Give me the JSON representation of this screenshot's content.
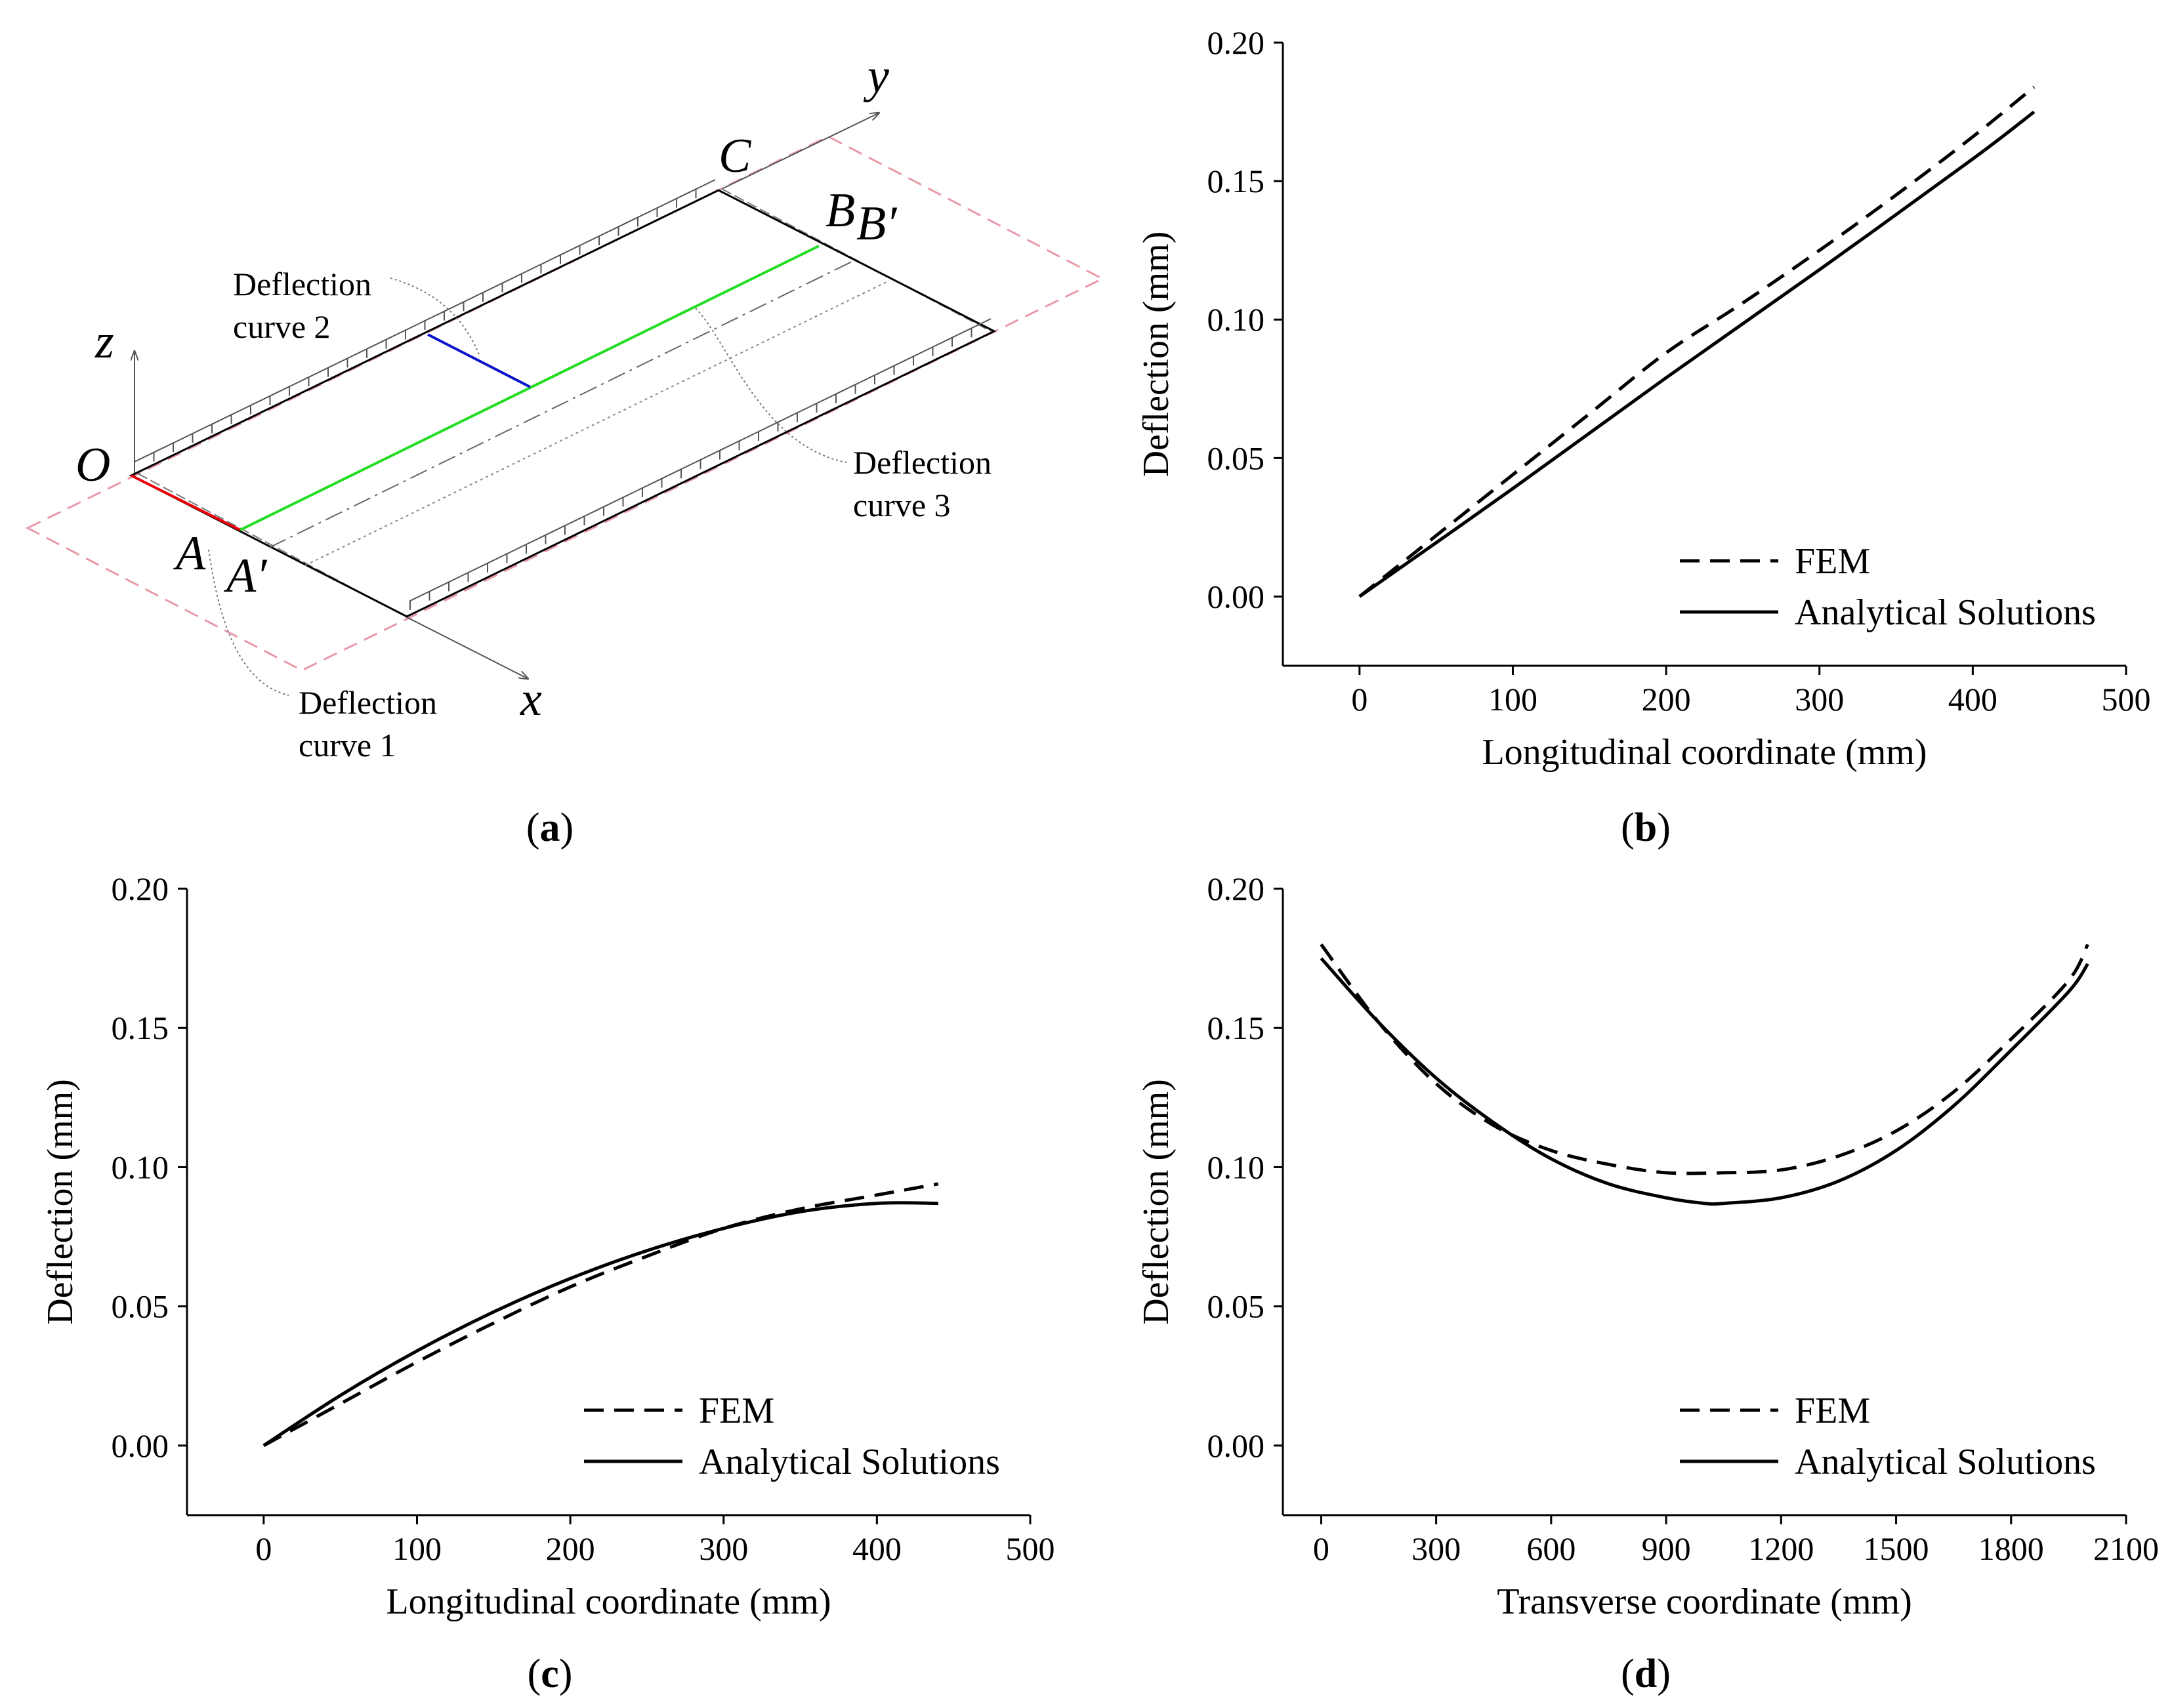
{
  "diagram": {
    "axes": {
      "z": "z",
      "y": "y",
      "x": "x"
    },
    "points": {
      "O": "O",
      "A": "A",
      "A_prime": "A′",
      "B": "B",
      "B_prime": "B′",
      "C": "C"
    },
    "labels": {
      "curve1_line1": "Deflection",
      "curve1_line2": "curve 1",
      "curve2_line1": "Deflection",
      "curve2_line2": "curve 2",
      "curve3_line1": "Deflection",
      "curve3_line2": "curve 3"
    },
    "colors": {
      "curve1": "#e8000b",
      "curve2": "#0a14c8",
      "curve3": "#22dd22",
      "plane": "#e89aa8"
    }
  },
  "captions": {
    "a": {
      "open": "(",
      "letter": "a",
      "close": ")"
    },
    "b": {
      "open": "(",
      "letter": "b",
      "close": ")"
    },
    "c": {
      "open": "(",
      "letter": "c",
      "close": ")"
    },
    "d": {
      "open": "(",
      "letter": "d",
      "close": ")"
    }
  },
  "chart_data": [
    {
      "id": "b",
      "type": "line",
      "xlabel": "Longitudinal coordinate (mm)",
      "ylabel": "Deflection (mm)",
      "xlim": [
        -50,
        500
      ],
      "ylim": [
        -0.025,
        0.2
      ],
      "xticks": [
        0,
        100,
        200,
        300,
        400,
        500
      ],
      "xtick_labels": [
        "0",
        "100",
        "200",
        "300",
        "400",
        "500"
      ],
      "yticks": [
        0.0,
        0.05,
        0.1,
        0.15,
        0.2
      ],
      "ytick_labels": [
        "0.00",
        "0.05",
        "0.10",
        "0.15",
        "0.20"
      ],
      "legend": "bottom-right",
      "series": [
        {
          "name": "FEM",
          "style": "dashed",
          "x": [
            0,
            50,
            100,
            150,
            200,
            250,
            300,
            350,
            400,
            440
          ],
          "y": [
            0.0,
            0.022,
            0.044,
            0.066,
            0.088,
            0.106,
            0.125,
            0.145,
            0.166,
            0.184
          ]
        },
        {
          "name": "Analytical Solutions",
          "style": "solid",
          "x": [
            0,
            100,
            200,
            300,
            400,
            440
          ],
          "y": [
            0.0,
            0.039,
            0.079,
            0.118,
            0.158,
            0.175
          ]
        }
      ]
    },
    {
      "id": "c",
      "type": "line",
      "xlabel": "Longitudinal coordinate (mm)",
      "ylabel": "Deflection (mm)",
      "xlim": [
        -50,
        500
      ],
      "ylim": [
        -0.025,
        0.2
      ],
      "xticks": [
        0,
        100,
        200,
        300,
        400,
        500
      ],
      "xtick_labels": [
        "0",
        "100",
        "200",
        "300",
        "400",
        "500"
      ],
      "yticks": [
        0.0,
        0.05,
        0.1,
        0.15,
        0.2
      ],
      "ytick_labels": [
        "0.00",
        "0.05",
        "0.10",
        "0.15",
        "0.20"
      ],
      "legend": "bottom-right",
      "series": [
        {
          "name": "FEM",
          "style": "dashed",
          "x": [
            0,
            50,
            100,
            150,
            200,
            250,
            300,
            350,
            400,
            440
          ],
          "y": [
            0.0,
            0.015,
            0.03,
            0.044,
            0.057,
            0.068,
            0.078,
            0.085,
            0.09,
            0.094
          ]
        },
        {
          "name": "Analytical Solutions",
          "style": "solid",
          "x": [
            0,
            50,
            100,
            150,
            200,
            250,
            300,
            350,
            400,
            440
          ],
          "y": [
            0.0,
            0.018,
            0.034,
            0.048,
            0.06,
            0.07,
            0.078,
            0.084,
            0.087,
            0.087
          ]
        }
      ]
    },
    {
      "id": "d",
      "type": "line",
      "xlabel": "Transverse coordinate (mm)",
      "ylabel": "Deflection (mm)",
      "xlim": [
        -100,
        2100
      ],
      "ylim": [
        -0.025,
        0.2
      ],
      "xticks": [
        0,
        300,
        600,
        900,
        1200,
        1500,
        1800,
        2100
      ],
      "xtick_labels": [
        "0",
        "300",
        "600",
        "900",
        "1200",
        "1500",
        "1800",
        "2100"
      ],
      "yticks": [
        0.0,
        0.05,
        0.1,
        0.15,
        0.2
      ],
      "ytick_labels": [
        "0.00",
        "0.05",
        "0.10",
        "0.15",
        "0.20"
      ],
      "legend": "bottom-right",
      "series": [
        {
          "name": "FEM",
          "style": "dashed",
          "x": [
            0,
            150,
            300,
            450,
            600,
            750,
            900,
            1050,
            1200,
            1350,
            1500,
            1650,
            1800,
            1950,
            2000
          ],
          "y": [
            0.18,
            0.152,
            0.13,
            0.115,
            0.106,
            0.101,
            0.098,
            0.098,
            0.099,
            0.104,
            0.113,
            0.127,
            0.146,
            0.167,
            0.18
          ]
        },
        {
          "name": "Analytical Solutions",
          "style": "solid",
          "x": [
            0,
            150,
            300,
            450,
            600,
            750,
            900,
            1000,
            1050,
            1200,
            1350,
            1500,
            1650,
            1800,
            1950,
            2000
          ],
          "y": [
            0.175,
            0.152,
            0.132,
            0.116,
            0.103,
            0.094,
            0.089,
            0.087,
            0.087,
            0.089,
            0.095,
            0.106,
            0.122,
            0.142,
            0.163,
            0.173
          ]
        }
      ]
    }
  ]
}
